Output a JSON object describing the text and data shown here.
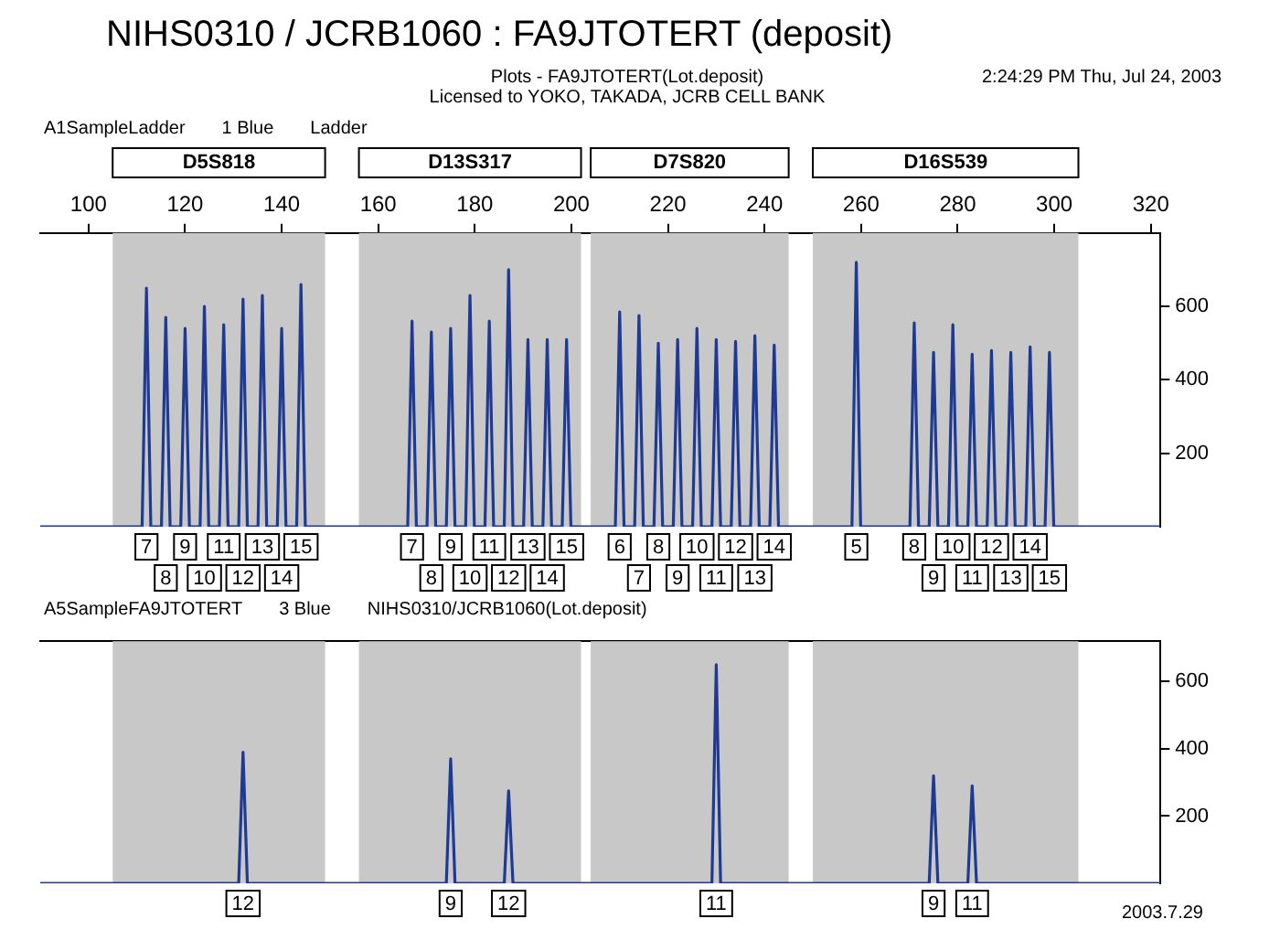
{
  "chart_data": [
    {
      "type": "line",
      "title": "NIHS0310 / JCRB1060 : FA9JTOTERT (deposit)",
      "subtitle": "Plots - FA9JTOTERT(Lot.deposit)",
      "annotations": [
        "Licensed to YOKO, TAKADA, JCRB CELL BANK",
        "2:24:29 PM Thu, Jul 24, 2003",
        "A1SampleLadder",
        "1 Blue",
        "Ladder",
        {
          "text": "7",
          "x": 112,
          "y": 0
        },
        {
          "text": "8",
          "x": 116,
          "y": 0
        },
        {
          "text": "9",
          "x": 120,
          "y": 0
        },
        {
          "text": "10",
          "x": 124,
          "y": 0
        },
        {
          "text": "11",
          "x": 128,
          "y": 0
        },
        {
          "text": "12",
          "x": 132,
          "y": 0
        },
        {
          "text": "13",
          "x": 136,
          "y": 0
        },
        {
          "text": "14",
          "x": 140,
          "y": 0
        },
        {
          "text": "15",
          "x": 144,
          "y": 0
        },
        {
          "text": "7",
          "x": 167,
          "y": 0
        },
        {
          "text": "8",
          "x": 171,
          "y": 0
        },
        {
          "text": "9",
          "x": 175,
          "y": 0
        },
        {
          "text": "10",
          "x": 179,
          "y": 0
        },
        {
          "text": "11",
          "x": 183,
          "y": 0
        },
        {
          "text": "12",
          "x": 187,
          "y": 0
        },
        {
          "text": "13",
          "x": 191,
          "y": 0
        },
        {
          "text": "14",
          "x": 195,
          "y": 0
        },
        {
          "text": "15",
          "x": 199,
          "y": 0
        },
        {
          "text": "6",
          "x": 210,
          "y": 0
        },
        {
          "text": "7",
          "x": 214,
          "y": 0
        },
        {
          "text": "8",
          "x": 218,
          "y": 0
        },
        {
          "text": "9",
          "x": 222,
          "y": 0
        },
        {
          "text": "10",
          "x": 226,
          "y": 0
        },
        {
          "text": "11",
          "x": 230,
          "y": 0
        },
        {
          "text": "12",
          "x": 234,
          "y": 0
        },
        {
          "text": "13",
          "x": 238,
          "y": 0
        },
        {
          "text": "14",
          "x": 242,
          "y": 0
        },
        {
          "text": "5",
          "x": 259,
          "y": 0
        },
        {
          "text": "8",
          "x": 271,
          "y": 0
        },
        {
          "text": "9",
          "x": 275,
          "y": 0
        },
        {
          "text": "10",
          "x": 279,
          "y": 0
        },
        {
          "text": "11",
          "x": 283,
          "y": 0
        },
        {
          "text": "12",
          "x": 287,
          "y": 0
        },
        {
          "text": "13",
          "x": 291,
          "y": 0
        },
        {
          "text": "14",
          "x": 295,
          "y": 0
        },
        {
          "text": "15",
          "x": 299,
          "y": 0
        }
      ],
      "x": [
        90,
        111.1,
        112,
        112.9,
        115.1,
        116,
        116.9,
        119.1,
        120,
        120.9,
        123.1,
        124,
        124.9,
        127.1,
        128,
        128.9,
        131.1,
        132,
        132.9,
        135.1,
        136,
        136.9,
        139.1,
        140,
        140.9,
        143.1,
        144,
        144.9,
        166.1,
        167,
        167.9,
        170.1,
        171,
        171.9,
        174.1,
        175,
        175.9,
        178.1,
        179,
        179.9,
        182.1,
        183,
        183.9,
        186.1,
        187,
        187.9,
        190.1,
        191,
        191.9,
        194.1,
        195,
        195.9,
        198.1,
        199,
        199.9,
        209.1,
        210,
        210.9,
        213.1,
        214,
        214.9,
        217.1,
        218,
        218.9,
        221.1,
        222,
        222.9,
        225.1,
        226,
        226.9,
        229.1,
        230,
        230.9,
        233.1,
        234,
        234.9,
        237.1,
        238,
        238.9,
        241.1,
        242,
        242.9,
        258.1,
        259,
        259.9,
        270.1,
        271,
        271.9,
        274.1,
        275,
        275.9,
        278.1,
        279,
        279.9,
        282.1,
        283,
        283.9,
        286.1,
        287,
        287.9,
        290.1,
        291,
        291.9,
        294.1,
        295,
        295.9,
        298.1,
        299,
        299.9,
        322
      ],
      "values": [
        0,
        0,
        650,
        0,
        0,
        570,
        0,
        0,
        540,
        0,
        0,
        600,
        0,
        0,
        550,
        0,
        0,
        620,
        0,
        0,
        630,
        0,
        0,
        540,
        0,
        0,
        660,
        0,
        0,
        560,
        0,
        0,
        530,
        0,
        0,
        540,
        0,
        0,
        630,
        0,
        0,
        560,
        0,
        0,
        700,
        0,
        0,
        510,
        0,
        0,
        510,
        0,
        0,
        510,
        0,
        0,
        585,
        0,
        0,
        575,
        0,
        0,
        500,
        0,
        0,
        510,
        0,
        0,
        540,
        0,
        0,
        510,
        0,
        0,
        505,
        0,
        0,
        520,
        0,
        0,
        495,
        0,
        0,
        720,
        0,
        0,
        555,
        0,
        0,
        475,
        0,
        0,
        550,
        0,
        0,
        470,
        0,
        0,
        480,
        0,
        0,
        475,
        0,
        0,
        490,
        0,
        0,
        475,
        0,
        0
      ],
      "color": "#1f3a93",
      "xlim": [
        90,
        322
      ],
      "xticks": [
        100,
        120,
        140,
        160,
        180,
        200,
        220,
        240,
        260,
        280,
        300,
        320
      ],
      "ylim": [
        0,
        800
      ],
      "yticks": [
        200,
        400,
        600
      ],
      "grid": false,
      "legend": false,
      "bands": [
        {
          "axis": "x",
          "from": 105,
          "to": 149,
          "label": "D5S818",
          "color": "#c8c8c8"
        },
        {
          "axis": "x",
          "from": 156,
          "to": 202,
          "label": "D13S317",
          "color": "#c8c8c8"
        },
        {
          "axis": "x",
          "from": 204,
          "to": 245,
          "label": "D7S820",
          "color": "#c8c8c8"
        },
        {
          "axis": "x",
          "from": 250,
          "to": 305,
          "label": "D16S539",
          "color": "#c8c8c8"
        }
      ]
    },
    {
      "type": "line",
      "annotations": [
        "A5SampleFA9JTOTERT",
        "3 Blue",
        "NIHS0310/JCRB1060(Lot.deposit)",
        "2003.7.29",
        {
          "text": "12",
          "x": 132,
          "y": 0
        },
        {
          "text": "9",
          "x": 175,
          "y": 0
        },
        {
          "text": "12",
          "x": 187,
          "y": 0
        },
        {
          "text": "11",
          "x": 230,
          "y": 0
        },
        {
          "text": "9",
          "x": 275,
          "y": 0
        },
        {
          "text": "11",
          "x": 283,
          "y": 0
        }
      ],
      "x": [
        90,
        131.1,
        132,
        132.9,
        174.1,
        175,
        175.9,
        186.1,
        187,
        187.9,
        229.1,
        230,
        230.9,
        274.1,
        275,
        275.9,
        282.1,
        283,
        283.9,
        322
      ],
      "values": [
        0,
        0,
        390,
        0,
        0,
        370,
        0,
        0,
        275,
        0,
        0,
        650,
        0,
        0,
        320,
        0,
        0,
        290,
        0,
        0
      ],
      "color": "#1f3a93",
      "xlim": [
        90,
        322
      ],
      "ylim": [
        0,
        720
      ],
      "yticks": [
        200,
        400,
        600
      ],
      "tick_labels": "y",
      "grid": false,
      "legend": false,
      "bands": [
        {
          "axis": "x",
          "from": 105,
          "to": 149,
          "color": "#c8c8c8"
        },
        {
          "axis": "x",
          "from": 156,
          "to": 202,
          "color": "#c8c8c8"
        },
        {
          "axis": "x",
          "from": 204,
          "to": 245,
          "color": "#c8c8c8"
        },
        {
          "axis": "x",
          "from": 250,
          "to": 305,
          "color": "#c8c8c8"
        }
      ]
    }
  ]
}
